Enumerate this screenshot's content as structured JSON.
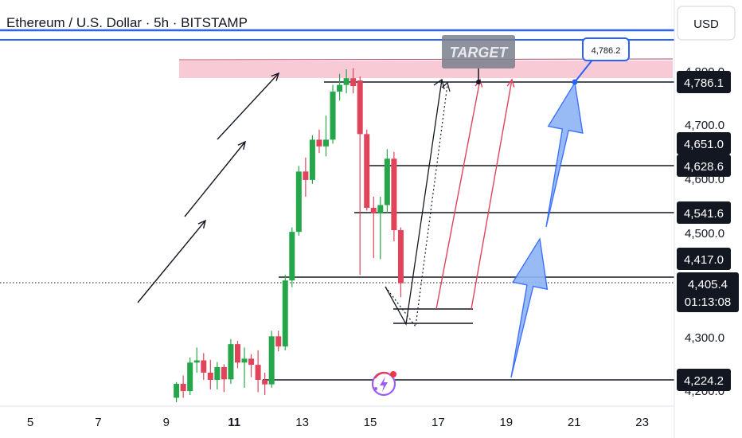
{
  "chart_data": {
    "type": "candlestick",
    "title": "Ethereum / U.S. Dollar · 5h · BITSTAMP",
    "currency": "USD",
    "x_ticks": [
      {
        "label": "5",
        "day": 5,
        "bold": false
      },
      {
        "label": "7",
        "day": 7,
        "bold": false
      },
      {
        "label": "9",
        "day": 9,
        "bold": false
      },
      {
        "label": "11",
        "day": 11,
        "bold": true
      },
      {
        "label": "13",
        "day": 13,
        "bold": false
      },
      {
        "label": "15",
        "day": 15,
        "bold": false
      },
      {
        "label": "17",
        "day": 17,
        "bold": false
      },
      {
        "label": "19",
        "day": 19,
        "bold": false
      },
      {
        "label": "21",
        "day": 21,
        "bold": false
      },
      {
        "label": "23",
        "day": 23,
        "bold": false
      }
    ],
    "y_ticks": [
      "4,800.0",
      "4,700.0",
      "4,600.0",
      "4,500.0",
      "4,300.0",
      "4,200.0"
    ],
    "ylim": [
      4195,
      4855
    ],
    "xlim": [
      4.0,
      24.7
    ],
    "current_price": {
      "value": 4405.4,
      "label": "4,405.4",
      "countdown": "01:13:08"
    },
    "price_levels": [
      {
        "label": "4,786.1",
        "value": 4786.1
      },
      {
        "label": "4,651.0",
        "value": 4651.0
      },
      {
        "label": "4,628.6",
        "value": 4628.6
      },
      {
        "label": "4,541.6",
        "value": 4541.6
      },
      {
        "label": "4,417.0",
        "value": 4417.0
      },
      {
        "label": "4,224.2",
        "value": 4224.2
      }
    ],
    "target_zone": {
      "top": 4835,
      "bottom": 4812,
      "label": "TARGET"
    },
    "target_callout": {
      "label": "4,786.2",
      "value": 4786.2
    },
    "top_band_price": 4855,
    "candles": [
      {
        "t": 9.3,
        "o": 4200,
        "h": 4228,
        "l": 4192,
        "c": 4225
      },
      {
        "t": 9.5,
        "o": 4225,
        "h": 4240,
        "l": 4200,
        "c": 4212
      },
      {
        "t": 9.7,
        "o": 4212,
        "h": 4272,
        "l": 4205,
        "c": 4263
      },
      {
        "t": 9.9,
        "o": 4263,
        "h": 4290,
        "l": 4245,
        "c": 4267
      },
      {
        "t": 10.1,
        "o": 4267,
        "h": 4280,
        "l": 4232,
        "c": 4245
      },
      {
        "t": 10.3,
        "o": 4245,
        "h": 4268,
        "l": 4215,
        "c": 4232
      },
      {
        "t": 10.5,
        "o": 4232,
        "h": 4264,
        "l": 4215,
        "c": 4255
      },
      {
        "t": 10.7,
        "o": 4255,
        "h": 4260,
        "l": 4210,
        "c": 4233
      },
      {
        "t": 10.9,
        "o": 4233,
        "h": 4305,
        "l": 4225,
        "c": 4296
      },
      {
        "t": 11.1,
        "o": 4296,
        "h": 4302,
        "l": 4253,
        "c": 4263
      },
      {
        "t": 11.3,
        "o": 4263,
        "h": 4290,
        "l": 4218,
        "c": 4270
      },
      {
        "t": 11.5,
        "o": 4270,
        "h": 4278,
        "l": 4237,
        "c": 4259
      },
      {
        "t": 11.7,
        "o": 4259,
        "h": 4285,
        "l": 4210,
        "c": 4232
      },
      {
        "t": 11.9,
        "o": 4232,
        "h": 4245,
        "l": 4205,
        "c": 4224
      },
      {
        "t": 12.1,
        "o": 4224,
        "h": 4320,
        "l": 4218,
        "c": 4310
      },
      {
        "t": 12.3,
        "o": 4310,
        "h": 4320,
        "l": 4283,
        "c": 4292
      },
      {
        "t": 12.5,
        "o": 4292,
        "h": 4420,
        "l": 4285,
        "c": 4410
      },
      {
        "t": 12.7,
        "o": 4410,
        "h": 4505,
        "l": 4398,
        "c": 4497
      },
      {
        "t": 12.9,
        "o": 4497,
        "h": 4615,
        "l": 4490,
        "c": 4605
      },
      {
        "t": 13.1,
        "o": 4605,
        "h": 4630,
        "l": 4560,
        "c": 4590
      },
      {
        "t": 13.3,
        "o": 4590,
        "h": 4670,
        "l": 4583,
        "c": 4662
      },
      {
        "t": 13.5,
        "o": 4662,
        "h": 4680,
        "l": 4638,
        "c": 4650
      },
      {
        "t": 13.7,
        "o": 4650,
        "h": 4705,
        "l": 4632,
        "c": 4662
      },
      {
        "t": 13.9,
        "o": 4662,
        "h": 4760,
        "l": 4655,
        "c": 4748
      },
      {
        "t": 14.1,
        "o": 4748,
        "h": 4780,
        "l": 4732,
        "c": 4760
      },
      {
        "t": 14.3,
        "o": 4760,
        "h": 4788,
        "l": 4745,
        "c": 4772
      },
      {
        "t": 14.5,
        "o": 4772,
        "h": 4790,
        "l": 4745,
        "c": 4758
      },
      {
        "t": 14.7,
        "o": 4768,
        "h": 4775,
        "l": 4420,
        "c": 4672
      },
      {
        "t": 14.9,
        "o": 4672,
        "h": 4680,
        "l": 4535,
        "c": 4540
      },
      {
        "t": 15.1,
        "o": 4540,
        "h": 4560,
        "l": 4450,
        "c": 4530
      },
      {
        "t": 15.3,
        "o": 4530,
        "h": 4560,
        "l": 4448,
        "c": 4545
      },
      {
        "t": 15.5,
        "o": 4545,
        "h": 4645,
        "l": 4530,
        "c": 4628
      },
      {
        "t": 15.7,
        "o": 4628,
        "h": 4640,
        "l": 4480,
        "c": 4500
      },
      {
        "t": 15.9,
        "o": 4500,
        "h": 4505,
        "l": 4380,
        "c": 4405
      }
    ]
  }
}
